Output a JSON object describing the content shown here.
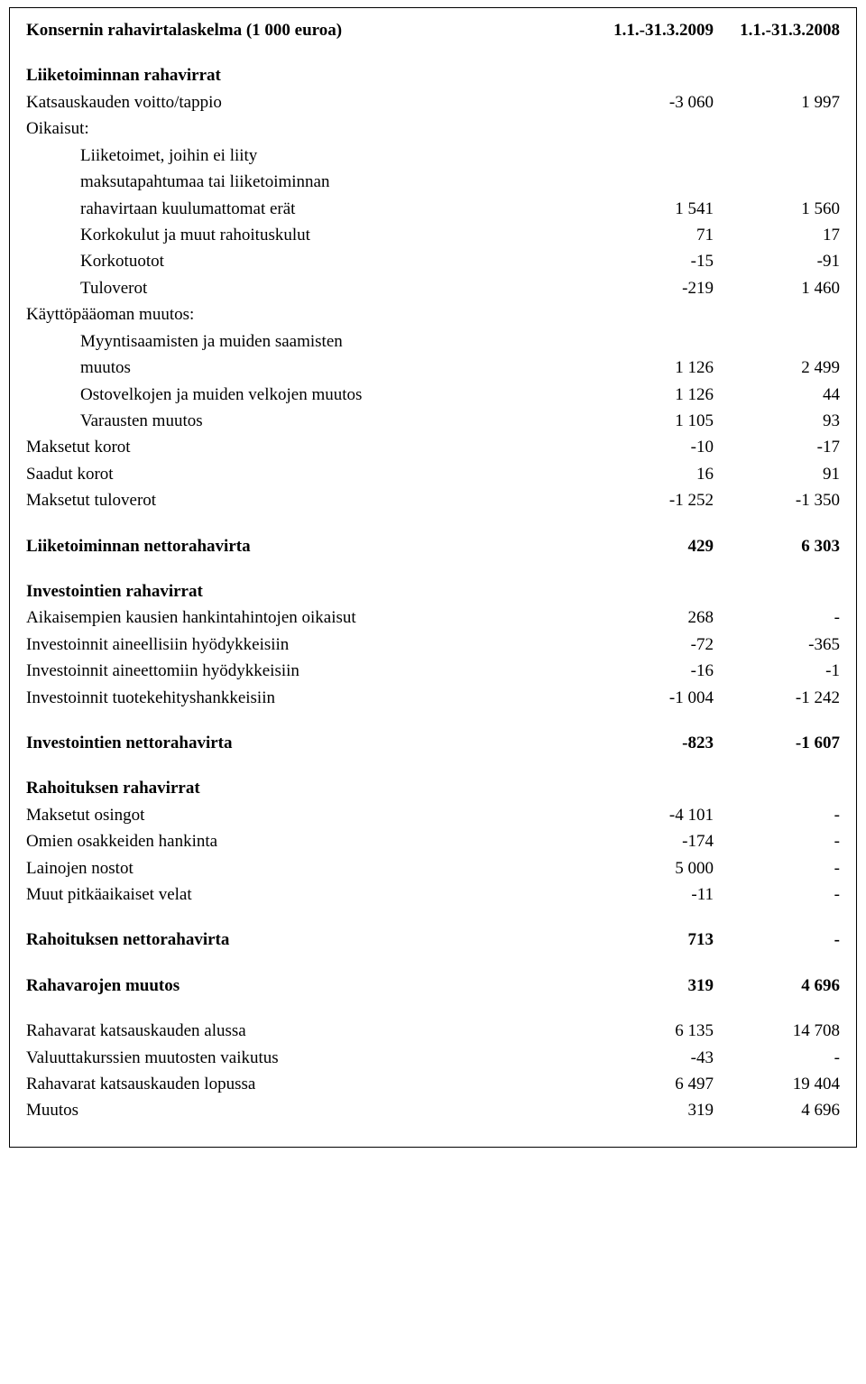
{
  "header": {
    "title": "Konsernin rahavirtalaskelma (1 000 euroa)",
    "col1": "1.1.-31.3.2009",
    "col2": "1.1.-31.3.2008"
  },
  "s1": {
    "title": "Liiketoiminnan rahavirrat",
    "r1": {
      "label": "Katsauskauden voitto/tappio",
      "c1": "-3 060",
      "c2": "1 997"
    },
    "r2": {
      "label": "Oikaisut:"
    },
    "r3": {
      "label": "Liiketoimet, joihin ei liity"
    },
    "r4": {
      "label": "maksutapahtumaa tai liiketoiminnan"
    },
    "r5": {
      "label": "rahavirtaan kuulumattomat erät",
      "c1": "1 541",
      "c2": "1 560"
    },
    "r6": {
      "label": "Korkokulut ja muut rahoituskulut",
      "c1": "71",
      "c2": "17"
    },
    "r7": {
      "label": "Korkotuotot",
      "c1": "-15",
      "c2": "-91"
    },
    "r8": {
      "label": "Tuloverot",
      "c1": "-219",
      "c2": "1 460"
    },
    "r9": {
      "label": "Käyttöpääoman muutos:"
    },
    "r10": {
      "label": "Myyntisaamisten ja muiden saamisten"
    },
    "r11": {
      "label": "muutos",
      "c1": "1 126",
      "c2": "2 499"
    },
    "r12": {
      "label": "Ostovelkojen ja muiden velkojen muutos",
      "c1": "1 126",
      "c2": "44"
    },
    "r13": {
      "label": "Varausten muutos",
      "c1": "1 105",
      "c2": "93"
    },
    "r14": {
      "label": "Maksetut korot",
      "c1": "-10",
      "c2": "-17"
    },
    "r15": {
      "label": "Saadut korot",
      "c1": "16",
      "c2": "91"
    },
    "r16": {
      "label": "Maksetut tuloverot",
      "c1": "-1 252",
      "c2": "-1 350"
    },
    "net": {
      "label": "Liiketoiminnan nettorahavirta",
      "c1": "429",
      "c2": "6 303"
    }
  },
  "s2": {
    "title": "Investointien rahavirrat",
    "r1": {
      "label": "Aikaisempien kausien hankintahintojen oikaisut",
      "c1": "268",
      "c2": "-"
    },
    "r2": {
      "label": "Investoinnit aineellisiin hyödykkeisiin",
      "c1": "-72",
      "c2": "-365"
    },
    "r3": {
      "label": "Investoinnit aineettomiin hyödykkeisiin",
      "c1": "-16",
      "c2": "-1"
    },
    "r4": {
      "label": "Investoinnit tuotekehityshankkeisiin",
      "c1": "-1 004",
      "c2": "-1 242"
    },
    "net": {
      "label": "Investointien nettorahavirta",
      "c1": "-823",
      "c2": "-1 607"
    }
  },
  "s3": {
    "title": "Rahoituksen rahavirrat",
    "r1": {
      "label": "Maksetut osingot",
      "c1": "-4 101",
      "c2": "-"
    },
    "r2": {
      "label": "Omien osakkeiden hankinta",
      "c1": "-174",
      "c2": "-"
    },
    "r3": {
      "label": "Lainojen nostot",
      "c1": "5 000",
      "c2": "-"
    },
    "r4": {
      "label": "Muut pitkäaikaiset velat",
      "c1": "-11",
      "c2": "-"
    },
    "net": {
      "label": "Rahoituksen nettorahavirta",
      "c1": "713",
      "c2": "-"
    }
  },
  "s4": {
    "r1": {
      "label": "Rahavarojen muutos",
      "c1": "319",
      "c2": "4 696"
    },
    "r2": {
      "label": "Rahavarat katsauskauden alussa",
      "c1": "6 135",
      "c2": "14 708"
    },
    "r3": {
      "label": "Valuuttakurssien muutosten vaikutus",
      "c1": "-43",
      "c2": "-"
    },
    "r4": {
      "label": "Rahavarat katsauskauden lopussa",
      "c1": "6 497",
      "c2": "19 404"
    },
    "r5": {
      "label": "Muutos",
      "c1": "319",
      "c2": "4 696"
    }
  }
}
